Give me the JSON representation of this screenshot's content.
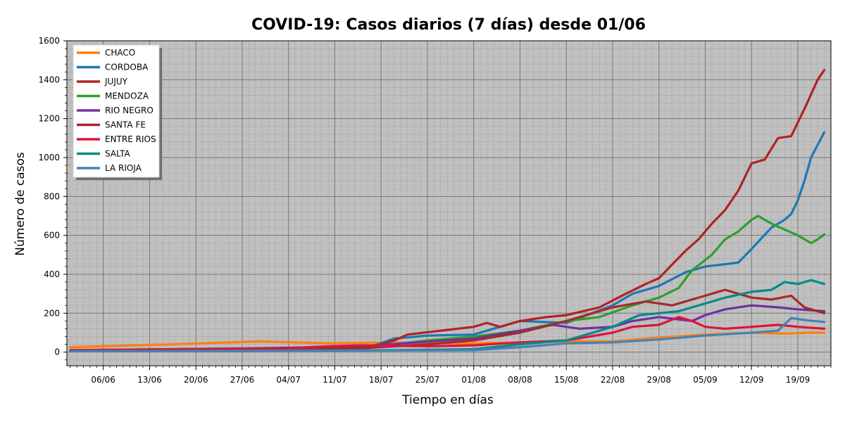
{
  "chart_data": {
    "type": "line",
    "title": "COVID-19: Casos diarios (7 días) desde 01/06",
    "xlabel": "Tiempo en días",
    "ylabel": "Número de casos",
    "x_start": "01/06",
    "x_end": "24/09",
    "xtick_labels": [
      "06/06",
      "13/06",
      "20/06",
      "27/06",
      "04/07",
      "11/07",
      "18/07",
      "25/07",
      "01/08",
      "08/08",
      "15/08",
      "22/08",
      "29/08",
      "05/09",
      "12/09",
      "19/09"
    ],
    "ylim": [
      0,
      1600
    ],
    "yticks": [
      0,
      200,
      400,
      600,
      800,
      1000,
      1200,
      1400,
      1600
    ],
    "grid": true,
    "background": "#c0c0c0",
    "legend_position": "top-left",
    "series": [
      {
        "name": "CHACO",
        "color": "#ff7f0e",
        "keypoints": [
          [
            "01/06",
            25
          ],
          [
            "16/06",
            40
          ],
          [
            "30/06",
            55
          ],
          [
            "10/07",
            45
          ],
          [
            "20/07",
            50
          ],
          [
            "25/07",
            45
          ],
          [
            "01/08",
            45
          ],
          [
            "08/08",
            50
          ],
          [
            "15/08",
            55
          ],
          [
            "22/08",
            55
          ],
          [
            "29/08",
            75
          ],
          [
            "05/09",
            90
          ],
          [
            "12/09",
            100
          ],
          [
            "17/09",
            95
          ],
          [
            "21/09",
            100
          ],
          [
            "23/09",
            100
          ]
        ]
      },
      {
        "name": "CORDOBA",
        "color": "#1f77b4",
        "keypoints": [
          [
            "01/06",
            5
          ],
          [
            "15/07",
            10
          ],
          [
            "20/07",
            70
          ],
          [
            "25/07",
            85
          ],
          [
            "01/08",
            90
          ],
          [
            "08/08",
            160
          ],
          [
            "15/08",
            150
          ],
          [
            "22/08",
            240
          ],
          [
            "25/08",
            300
          ],
          [
            "29/08",
            340
          ],
          [
            "02/09",
            410
          ],
          [
            "05/09",
            440
          ],
          [
            "10/09",
            460
          ],
          [
            "12/09",
            530
          ],
          [
            "15/09",
            640
          ],
          [
            "17/09",
            680
          ],
          [
            "18/09",
            710
          ],
          [
            "19/09",
            780
          ],
          [
            "20/09",
            880
          ],
          [
            "21/09",
            1000
          ],
          [
            "23/09",
            1130
          ]
        ]
      },
      {
        "name": "JUJUY",
        "color": "#b22222",
        "keypoints": [
          [
            "01/06",
            5
          ],
          [
            "15/07",
            10
          ],
          [
            "20/07",
            60
          ],
          [
            "22/07",
            90
          ],
          [
            "27/07",
            110
          ],
          [
            "01/08",
            130
          ],
          [
            "03/08",
            150
          ],
          [
            "05/08",
            130
          ],
          [
            "08/08",
            160
          ],
          [
            "12/08",
            180
          ],
          [
            "15/08",
            190
          ],
          [
            "20/08",
            230
          ],
          [
            "24/08",
            300
          ],
          [
            "27/08",
            350
          ],
          [
            "29/08",
            380
          ],
          [
            "31/08",
            450
          ],
          [
            "02/09",
            520
          ],
          [
            "04/09",
            580
          ],
          [
            "06/09",
            660
          ],
          [
            "08/09",
            730
          ],
          [
            "10/09",
            830
          ],
          [
            "12/09",
            970
          ],
          [
            "14/09",
            990
          ],
          [
            "16/09",
            1100
          ],
          [
            "18/09",
            1110
          ],
          [
            "20/09",
            1250
          ],
          [
            "22/09",
            1400
          ],
          [
            "23/09",
            1450
          ]
        ]
      },
      {
        "name": "MENDOZA",
        "color": "#2ca02c",
        "keypoints": [
          [
            "01/06",
            5
          ],
          [
            "15/07",
            20
          ],
          [
            "25/07",
            60
          ],
          [
            "01/08",
            80
          ],
          [
            "08/08",
            110
          ],
          [
            "15/08",
            160
          ],
          [
            "20/08",
            180
          ],
          [
            "25/08",
            240
          ],
          [
            "29/08",
            280
          ],
          [
            "01/09",
            330
          ],
          [
            "03/09",
            420
          ],
          [
            "06/09",
            500
          ],
          [
            "08/09",
            580
          ],
          [
            "10/09",
            620
          ],
          [
            "12/09",
            680
          ],
          [
            "13/09",
            700
          ],
          [
            "15/09",
            660
          ],
          [
            "17/09",
            630
          ],
          [
            "19/09",
            600
          ],
          [
            "21/09",
            560
          ],
          [
            "22/09",
            580
          ],
          [
            "23/09",
            605
          ]
        ]
      },
      {
        "name": "RIO NEGRO",
        "color": "#7030a0",
        "keypoints": [
          [
            "01/06",
            10
          ],
          [
            "30/06",
            20
          ],
          [
            "15/07",
            30
          ],
          [
            "01/08",
            70
          ],
          [
            "08/08",
            110
          ],
          [
            "13/08",
            140
          ],
          [
            "17/08",
            120
          ],
          [
            "22/08",
            130
          ],
          [
            "25/08",
            160
          ],
          [
            "29/08",
            180
          ],
          [
            "03/09",
            160
          ],
          [
            "05/09",
            190
          ],
          [
            "08/09",
            220
          ],
          [
            "12/09",
            240
          ],
          [
            "16/09",
            230
          ],
          [
            "19/09",
            220
          ],
          [
            "23/09",
            210
          ]
        ]
      },
      {
        "name": "SANTA FE",
        "color": "#a52a2a",
        "keypoints": [
          [
            "01/06",
            5
          ],
          [
            "15/07",
            20
          ],
          [
            "25/07",
            40
          ],
          [
            "01/08",
            60
          ],
          [
            "08/08",
            100
          ],
          [
            "15/08",
            160
          ],
          [
            "22/08",
            230
          ],
          [
            "27/08",
            260
          ],
          [
            "31/08",
            240
          ],
          [
            "03/09",
            270
          ],
          [
            "06/09",
            300
          ],
          [
            "08/09",
            320
          ],
          [
            "12/09",
            280
          ],
          [
            "15/09",
            270
          ],
          [
            "18/09",
            290
          ],
          [
            "20/09",
            230
          ],
          [
            "23/09",
            200
          ]
        ]
      },
      {
        "name": "ENTRE RIOS",
        "color": "#dc143c",
        "keypoints": [
          [
            "01/06",
            10
          ],
          [
            "04/07",
            20
          ],
          [
            "10/07",
            30
          ],
          [
            "15/07",
            35
          ],
          [
            "25/07",
            30
          ],
          [
            "01/08",
            35
          ],
          [
            "08/08",
            50
          ],
          [
            "15/08",
            60
          ],
          [
            "22/08",
            100
          ],
          [
            "25/08",
            130
          ],
          [
            "29/08",
            140
          ],
          [
            "01/09",
            180
          ],
          [
            "03/09",
            160
          ],
          [
            "05/09",
            130
          ],
          [
            "08/09",
            120
          ],
          [
            "12/09",
            130
          ],
          [
            "16/09",
            140
          ],
          [
            "19/09",
            130
          ],
          [
            "23/09",
            120
          ]
        ]
      },
      {
        "name": "SALTA",
        "color": "#008b8b",
        "keypoints": [
          [
            "01/06",
            5
          ],
          [
            "20/07",
            10
          ],
          [
            "01/08",
            15
          ],
          [
            "08/08",
            40
          ],
          [
            "15/08",
            60
          ],
          [
            "22/08",
            130
          ],
          [
            "26/08",
            190
          ],
          [
            "29/08",
            200
          ],
          [
            "01/09",
            210
          ],
          [
            "05/09",
            250
          ],
          [
            "08/09",
            280
          ],
          [
            "12/09",
            310
          ],
          [
            "15/09",
            320
          ],
          [
            "17/09",
            360
          ],
          [
            "19/09",
            350
          ],
          [
            "21/09",
            370
          ],
          [
            "23/09",
            350
          ]
        ]
      },
      {
        "name": "LA RIOJA",
        "color": "#4682b4",
        "keypoints": [
          [
            "01/06",
            5
          ],
          [
            "01/08",
            10
          ],
          [
            "08/08",
            25
          ],
          [
            "15/08",
            45
          ],
          [
            "22/08",
            50
          ],
          [
            "29/08",
            65
          ],
          [
            "05/09",
            85
          ],
          [
            "12/09",
            100
          ],
          [
            "16/09",
            110
          ],
          [
            "18/09",
            175
          ],
          [
            "20/09",
            165
          ],
          [
            "23/09",
            155
          ]
        ]
      }
    ]
  }
}
